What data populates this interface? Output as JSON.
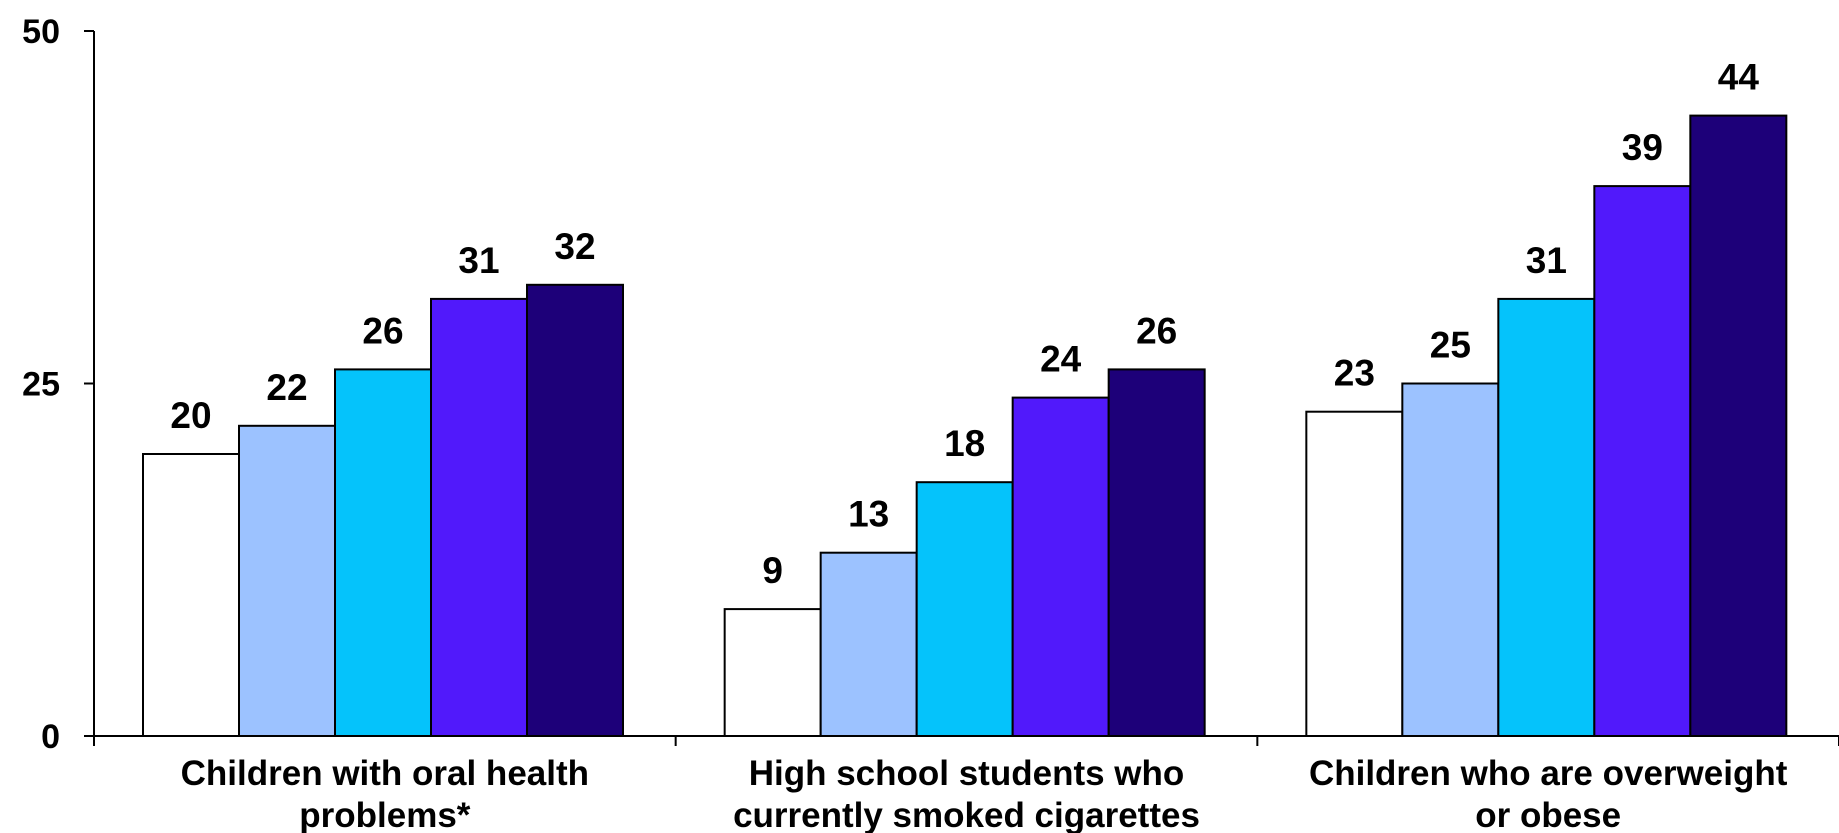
{
  "chart_data": {
    "type": "bar",
    "title": "",
    "xlabel": "",
    "ylabel": "",
    "ylim": [
      0,
      50
    ],
    "yticks": [
      "0",
      "25",
      "50"
    ],
    "ytick_values": [
      0,
      25,
      50
    ],
    "grid": false,
    "legend": "none",
    "categories": [
      [
        "Children with oral health",
        "problems*"
      ],
      [
        "High school students who",
        "currently smoked cigarettes"
      ],
      [
        "Children who are overweight",
        "or obese"
      ]
    ],
    "series": [
      {
        "color": "#ffffff",
        "values": [
          20,
          9,
          23
        ]
      },
      {
        "color": "#9cc2ff",
        "values": [
          22,
          13,
          25
        ]
      },
      {
        "color": "#05c3fb",
        "values": [
          26,
          18,
          31
        ]
      },
      {
        "color": "#5119fb",
        "values": [
          31,
          24,
          39
        ]
      },
      {
        "color": "#1d0079",
        "values": [
          32,
          26,
          44
        ]
      }
    ]
  }
}
